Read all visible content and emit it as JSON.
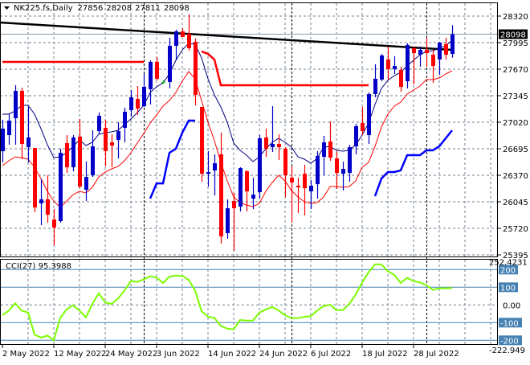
{
  "header": {
    "symbol": "NK225.fs,Daily",
    "open": "27856",
    "high": "28208",
    "low": "27811",
    "close": "28098"
  },
  "cci_panel": {
    "label": "CCI(27) 95.3988",
    "max_label": "252.4231",
    "min_label": "-222.949",
    "levels": [
      "200",
      "100",
      "0.00",
      "-100",
      "-200"
    ]
  },
  "colors": {
    "bull": "#0000c8",
    "bear": "#ff0000",
    "ma_fast": "#000080",
    "ma_slow": "#ff0000",
    "support_thick": "#0000ff",
    "resistance_thick": "#ff0000",
    "cci": "#7cfc00",
    "level": "#4682b4",
    "grid": "#708090"
  },
  "chart_data": {
    "type": "candlestick",
    "title": "NK225.fs,Daily",
    "ylim": [
      25395,
      28320
    ],
    "price_ticks": [
      "28320",
      "27995",
      "27670",
      "27345",
      "27020",
      "26695",
      "26370",
      "26045",
      "25720",
      "25395"
    ],
    "current_price": "28098",
    "date_labels": [
      {
        "i": 0,
        "label": "2 May 2022"
      },
      {
        "i": 8,
        "label": "12 May 2022"
      },
      {
        "i": 16,
        "label": "24 May 2022"
      },
      {
        "i": 24,
        "label": "3 Jun 2022"
      },
      {
        "i": 32,
        "label": "14 Jun 2022"
      },
      {
        "i": 40,
        "label": "24 Jun 2022"
      },
      {
        "i": 48,
        "label": "6 Jul 2022"
      },
      {
        "i": 56,
        "label": "18 Jul 2022"
      },
      {
        "i": 64,
        "label": "28 Jul 2022"
      }
    ],
    "period_separators": [
      22,
      45,
      66
    ],
    "ohlc": [
      [
        26665,
        27050,
        26527,
        26941
      ],
      [
        26862,
        27118,
        26744,
        27039
      ],
      [
        27069,
        27473,
        26744,
        27404
      ],
      [
        27404,
        27443,
        26567,
        26754
      ],
      [
        26714,
        27207,
        26527,
        26833
      ],
      [
        26704,
        26704,
        25917,
        25976
      ],
      [
        26026,
        26320,
        25759,
        26075
      ],
      [
        26075,
        26370,
        25789,
        25887
      ],
      [
        25828,
        25956,
        25513,
        25730
      ],
      [
        25808,
        26695,
        25789,
        26645
      ],
      [
        26764,
        26862,
        26399,
        26468
      ],
      [
        26468,
        26862,
        26418,
        26833
      ],
      [
        26843,
        27059,
        26212,
        26232
      ],
      [
        26192,
        26537,
        26054,
        26350
      ],
      [
        26370,
        26921,
        26350,
        26724
      ],
      [
        26911,
        27138,
        26872,
        27098
      ],
      [
        26951,
        27049,
        26478,
        26665
      ],
      [
        26773,
        26872,
        26468,
        26734
      ],
      [
        26803,
        27020,
        26576,
        26911
      ],
      [
        26951,
        27197,
        26773,
        27148
      ],
      [
        27168,
        27414,
        27089,
        27325
      ],
      [
        27305,
        27463,
        27108,
        27187
      ],
      [
        27217,
        27611,
        27207,
        27453
      ],
      [
        27424,
        27778,
        27237,
        27759
      ],
      [
        27759,
        27818,
        27532,
        27552
      ],
      [
        27513,
        27533,
        27493,
        27513
      ],
      [
        27513,
        28054,
        27434,
        27956
      ],
      [
        27956,
        28153,
        27778,
        28133
      ],
      [
        28133,
        28172,
        28064,
        28064
      ],
      [
        28103,
        28340,
        27897,
        27926
      ],
      [
        28005,
        28044,
        27227,
        27355
      ],
      [
        27207,
        27207,
        26291,
        26389
      ],
      [
        26389,
        26665,
        26232,
        26409
      ],
      [
        26429,
        26626,
        26123,
        26517
      ],
      [
        26626,
        26892,
        25533,
        25621
      ],
      [
        25661,
        26075,
        25592,
        25966
      ],
      [
        26055,
        26153,
        25444,
        25966
      ],
      [
        25986,
        26468,
        25927,
        26458
      ],
      [
        26419,
        26429,
        25927,
        26173
      ],
      [
        26084,
        26340,
        25956,
        26133
      ],
      [
        26163,
        26862,
        26084,
        26823
      ],
      [
        26833,
        26941,
        26596,
        26695
      ],
      [
        26714,
        27217,
        26655,
        26754
      ],
      [
        26754,
        26872,
        26557,
        26714
      ],
      [
        26695,
        26714,
        26104,
        26370
      ],
      [
        26340,
        26478,
        25789,
        26281
      ],
      [
        26242,
        26340,
        25907,
        26222
      ],
      [
        26389,
        26498,
        25877,
        26212
      ],
      [
        26173,
        26311,
        25956,
        26242
      ],
      [
        26261,
        26665,
        26084,
        26606
      ],
      [
        26596,
        26853,
        26370,
        26773
      ],
      [
        26783,
        27030,
        26547,
        26586
      ],
      [
        26576,
        26665,
        26203,
        26399
      ],
      [
        26389,
        26537,
        26183,
        26448
      ],
      [
        26399,
        26744,
        26291,
        26714
      ],
      [
        26724,
        27000,
        26626,
        26971
      ],
      [
        27010,
        27207,
        26862,
        26911
      ],
      [
        26862,
        27384,
        26754,
        27364
      ],
      [
        27365,
        27729,
        27325,
        27552
      ],
      [
        27542,
        27857,
        27522,
        27837
      ],
      [
        27788,
        27946,
        27532,
        27670
      ],
      [
        27670,
        27828,
        27611,
        27709
      ],
      [
        27660,
        27700,
        27394,
        27453
      ],
      [
        27522,
        27985,
        27434,
        27966
      ],
      [
        27926,
        27946,
        27483,
        27867
      ],
      [
        27847,
        27946,
        27700,
        27906
      ],
      [
        27906,
        28054,
        27700,
        27867
      ],
      [
        27847,
        27897,
        27502,
        27709
      ],
      [
        27788,
        28005,
        27601,
        27995
      ],
      [
        27976,
        28054,
        27788,
        27847
      ],
      [
        27856,
        28208,
        27811,
        28098
      ]
    ],
    "ma_fast": [
      27118,
      27118,
      27158,
      27227,
      27227,
      27118,
      26941,
      26744,
      26586,
      26596,
      26646,
      26724,
      26803,
      26734,
      26774,
      26872,
      26892,
      26902,
      26921,
      26990,
      27059,
      27138,
      27227,
      27384,
      27453,
      27502,
      27611,
      27778,
      27906,
      27985,
      27975,
      27808,
      27552,
      27355,
      27207,
      27020,
      26764,
      26675,
      26616,
      26537,
      26596,
      26695,
      26774,
      26823,
      26774,
      26714,
      26596,
      26567,
      26517,
      26577,
      26714,
      26724,
      26675,
      26665,
      26675,
      26744,
      26862,
      27010,
      27237,
      27434,
      27532,
      27591,
      27631,
      27709,
      27778,
      27847,
      27887,
      27896,
      27926,
      27956,
      28025
    ],
    "ma_slow": [
      26488,
      26547,
      26596,
      26586,
      26567,
      26468,
      26330,
      26173,
      26054,
      25976,
      26054,
      26133,
      26173,
      26153,
      26222,
      26350,
      26409,
      26449,
      26478,
      26547,
      26646,
      26764,
      26882,
      27010,
      27108,
      27217,
      27286,
      27384,
      27522,
      27640,
      27552,
      27286,
      27020,
      26793,
      26527,
      26301,
      26104,
      26035,
      26005,
      25986,
      26025,
      26173,
      26281,
      26370,
      26301,
      26183,
      26104,
      26045,
      26025,
      26035,
      26104,
      26232,
      26232,
      26222,
      26232,
      26301,
      26468,
      26527,
      26724,
      26961,
      27118,
      27217,
      27266,
      27365,
      27414,
      27463,
      27542,
      27542,
      27562,
      27611,
      27650
    ],
    "resistance_thick": [
      27759,
      27759,
      27759,
      27759,
      27759,
      27759,
      27759,
      27759,
      27759,
      27759,
      27759,
      27759,
      27759,
      27759,
      27759,
      27759,
      27759,
      27759,
      27759,
      27759,
      27759,
      27759,
      27759,
      null,
      null,
      null,
      null,
      null,
      null,
      null,
      null,
      27887,
      27857,
      27788,
      27473,
      27473,
      27473,
      27473,
      27473,
      27473,
      27473,
      27473,
      27473,
      27473,
      27473,
      27473,
      27473,
      27473,
      27473,
      27473,
      27473,
      27473,
      27473,
      27473,
      27473,
      27473,
      27473,
      27473,
      null,
      null,
      null,
      null,
      null,
      null,
      null,
      null,
      null,
      null,
      null,
      null,
      null
    ],
    "support_thick": [
      null,
      null,
      null,
      null,
      null,
      null,
      null,
      null,
      null,
      null,
      null,
      null,
      null,
      null,
      null,
      null,
      null,
      null,
      null,
      null,
      null,
      null,
      null,
      26084,
      26271,
      26271,
      26646,
      26695,
      26892,
      27040,
      27040,
      null,
      null,
      null,
      null,
      null,
      null,
      null,
      null,
      null,
      null,
      null,
      null,
      null,
      null,
      null,
      null,
      null,
      null,
      null,
      null,
      null,
      null,
      null,
      null,
      null,
      null,
      null,
      26114,
      26330,
      26409,
      26409,
      26429,
      26616,
      26616,
      26616,
      26675,
      26675,
      26724,
      26823,
      26921
    ],
    "trendline": [
      {
        "i": -0.4,
        "p": 28241
      },
      {
        "i": 70,
        "p": 27906
      }
    ],
    "cci": {
      "period": 27,
      "ylim": [
        -222.949,
        252.4231
      ],
      "levels": [
        200,
        100,
        0,
        -100,
        -200
      ],
      "values": [
        -58,
        -32,
        9,
        -32,
        -43,
        -168,
        -184,
        -173,
        -199,
        -73,
        -25,
        -2,
        -32,
        -70,
        6,
        66,
        14,
        6,
        36,
        82,
        135,
        130,
        145,
        162,
        155,
        124,
        160,
        166,
        164,
        142,
        82,
        -36,
        -67,
        -73,
        -118,
        -134,
        -138,
        -85,
        -88,
        -88,
        -43,
        -25,
        -12,
        -32,
        -58,
        -75,
        -75,
        -67,
        -64,
        -32,
        -6,
        1,
        -29,
        -29,
        6,
        59,
        127,
        185,
        229,
        229,
        191,
        170,
        124,
        153,
        135,
        127,
        112,
        85,
        94,
        94,
        95.3988
      ]
    }
  }
}
